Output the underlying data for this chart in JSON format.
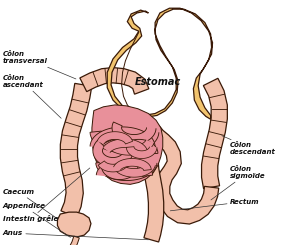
{
  "bg_color": "#ffffff",
  "stomach_fill": "#f2c46e",
  "colon_fill": "#f2c0aa",
  "intestine_fill": "#e8909a",
  "outline_color": "#3a1a08",
  "label_color": "#111111",
  "figsize": [
    2.83,
    2.5
  ],
  "dpi": 100,
  "labels": {
    "colon_transversal": "Côlon\ntransversal",
    "colon_ascendant": "Côlon\nascendant",
    "estomac": "Estomac",
    "caecum": "Caecum",
    "appendice": "Appendice",
    "intestin_grele": "Intestin grêle",
    "anus": "Anus",
    "colon_descendant": "Côlon\ndescendant",
    "colon_sigmoide": "Côlon\nsigmoïde",
    "rectum": "Rectum"
  }
}
